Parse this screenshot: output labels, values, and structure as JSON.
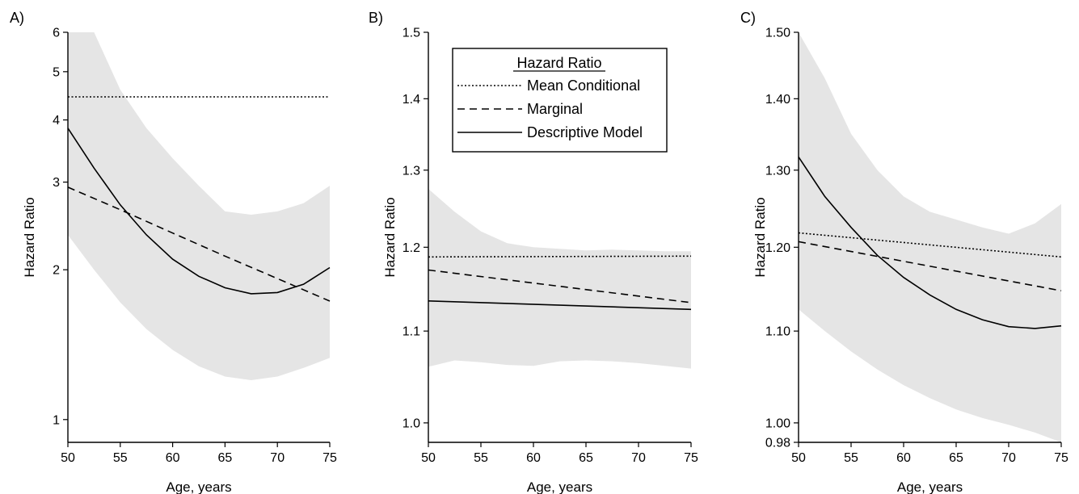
{
  "chart_data": [
    {
      "type": "line",
      "panel_label": "A)",
      "xlabel": "Age, years",
      "ylabel": "Hazard Ratio",
      "xlim": [
        50,
        75
      ],
      "ylim": [
        0.9,
        6
      ],
      "yscale": "log",
      "xticks": [
        50,
        55,
        60,
        65,
        70,
        75
      ],
      "yticks": [
        1,
        2,
        3,
        4,
        5,
        6
      ],
      "ytick_labels": [
        "1",
        "2",
        "3",
        "4",
        "5",
        "6"
      ],
      "band": {
        "x": [
          50,
          52.5,
          55,
          57.5,
          60,
          62.5,
          65,
          67.5,
          70,
          72.5,
          75
        ],
        "upper": [
          6.0,
          6.0,
          4.6,
          3.85,
          3.35,
          2.95,
          2.62,
          2.58,
          2.62,
          2.72,
          2.95
        ],
        "lower": [
          2.35,
          2.0,
          1.72,
          1.52,
          1.38,
          1.28,
          1.22,
          1.2,
          1.22,
          1.27,
          1.33
        ]
      },
      "series": [
        {
          "name": "Mean Conditional",
          "style": "dotted",
          "x": [
            50,
            75
          ],
          "values": [
            4.45,
            4.45
          ]
        },
        {
          "name": "Marginal",
          "style": "dashed",
          "x": [
            50,
            55,
            60,
            65,
            70,
            75
          ],
          "values": [
            2.93,
            2.64,
            2.37,
            2.13,
            1.92,
            1.73
          ]
        },
        {
          "name": "Descriptive Model",
          "style": "solid",
          "x": [
            50,
            52.5,
            55,
            57.5,
            60,
            62.5,
            65,
            67.5,
            70,
            72.5,
            75
          ],
          "values": [
            3.85,
            3.2,
            2.7,
            2.35,
            2.1,
            1.94,
            1.84,
            1.79,
            1.8,
            1.87,
            2.02
          ]
        }
      ]
    },
    {
      "type": "line",
      "panel_label": "B)",
      "xlabel": "Age, years",
      "ylabel": "Hazard Ratio",
      "xlim": [
        50,
        75
      ],
      "ylim": [
        0.98,
        1.5
      ],
      "yscale": "log",
      "xticks": [
        50,
        55,
        60,
        65,
        70,
        75
      ],
      "yticks": [
        1.0,
        1.1,
        1.2,
        1.3,
        1.4,
        1.5
      ],
      "ytick_labels": [
        "1.0",
        "1.1",
        "1.2",
        "1.3",
        "1.4",
        "1.5"
      ],
      "legend": {
        "title": "Hazard Ratio",
        "placement": "top"
      },
      "band": {
        "x": [
          50,
          52.5,
          55,
          57.5,
          60,
          62.5,
          65,
          67.5,
          70,
          72.5,
          75
        ],
        "upper": [
          1.275,
          1.245,
          1.22,
          1.205,
          1.2,
          1.198,
          1.196,
          1.197,
          1.196,
          1.195,
          1.195
        ],
        "lower": [
          1.06,
          1.067,
          1.065,
          1.062,
          1.061,
          1.066,
          1.067,
          1.066,
          1.064,
          1.061,
          1.058
        ]
      },
      "series": [
        {
          "name": "Mean Conditional",
          "style": "dotted",
          "x": [
            50,
            75
          ],
          "values": [
            1.188,
            1.189
          ]
        },
        {
          "name": "Marginal",
          "style": "dashed",
          "x": [
            50,
            75
          ],
          "values": [
            1.172,
            1.133
          ]
        },
        {
          "name": "Descriptive Model",
          "style": "solid",
          "x": [
            50,
            75
          ],
          "values": [
            1.135,
            1.125
          ]
        }
      ]
    },
    {
      "type": "line",
      "panel_label": "C)",
      "xlabel": "Age, years",
      "ylabel": "Hazard Ratio",
      "xlim": [
        50,
        75
      ],
      "ylim": [
        0.98,
        1.5
      ],
      "yscale": "log",
      "xticks": [
        50,
        55,
        60,
        65,
        70,
        75
      ],
      "yticks": [
        0.98,
        1.0,
        1.1,
        1.2,
        1.3,
        1.4,
        1.5
      ],
      "ytick_labels": [
        "0.98",
        "1.00",
        "1.10",
        "1.20",
        "1.30",
        "1.40",
        "1.50"
      ],
      "band": {
        "x": [
          50,
          52.5,
          55,
          57.5,
          60,
          62.5,
          65,
          67.5,
          70,
          72.5,
          75
        ],
        "upper": [
          1.5,
          1.43,
          1.35,
          1.3,
          1.265,
          1.245,
          1.235,
          1.225,
          1.217,
          1.23,
          1.255
        ],
        "lower": [
          1.125,
          1.1,
          1.077,
          1.057,
          1.04,
          1.026,
          1.014,
          1.005,
          0.998,
          0.99,
          0.98
        ]
      },
      "series": [
        {
          "name": "Mean Conditional",
          "style": "dotted",
          "x": [
            50,
            75
          ],
          "values": [
            1.218,
            1.188
          ]
        },
        {
          "name": "Marginal",
          "style": "dashed",
          "x": [
            50,
            75
          ],
          "values": [
            1.207,
            1.147
          ]
        },
        {
          "name": "Descriptive Model",
          "style": "solid",
          "x": [
            50,
            52.5,
            55,
            57.5,
            60,
            62.5,
            65,
            67.5,
            70,
            72.5,
            75
          ],
          "values": [
            1.318,
            1.265,
            1.225,
            1.19,
            1.163,
            1.142,
            1.125,
            1.113,
            1.105,
            1.103,
            1.106
          ]
        }
      ]
    }
  ],
  "legend_labels": {
    "title": "Hazard Ratio",
    "mean_conditional": "Mean Conditional",
    "marginal": "Marginal",
    "descriptive": "Descriptive Model"
  },
  "colors": {
    "band": "#e5e5e5",
    "line": "#000000"
  }
}
